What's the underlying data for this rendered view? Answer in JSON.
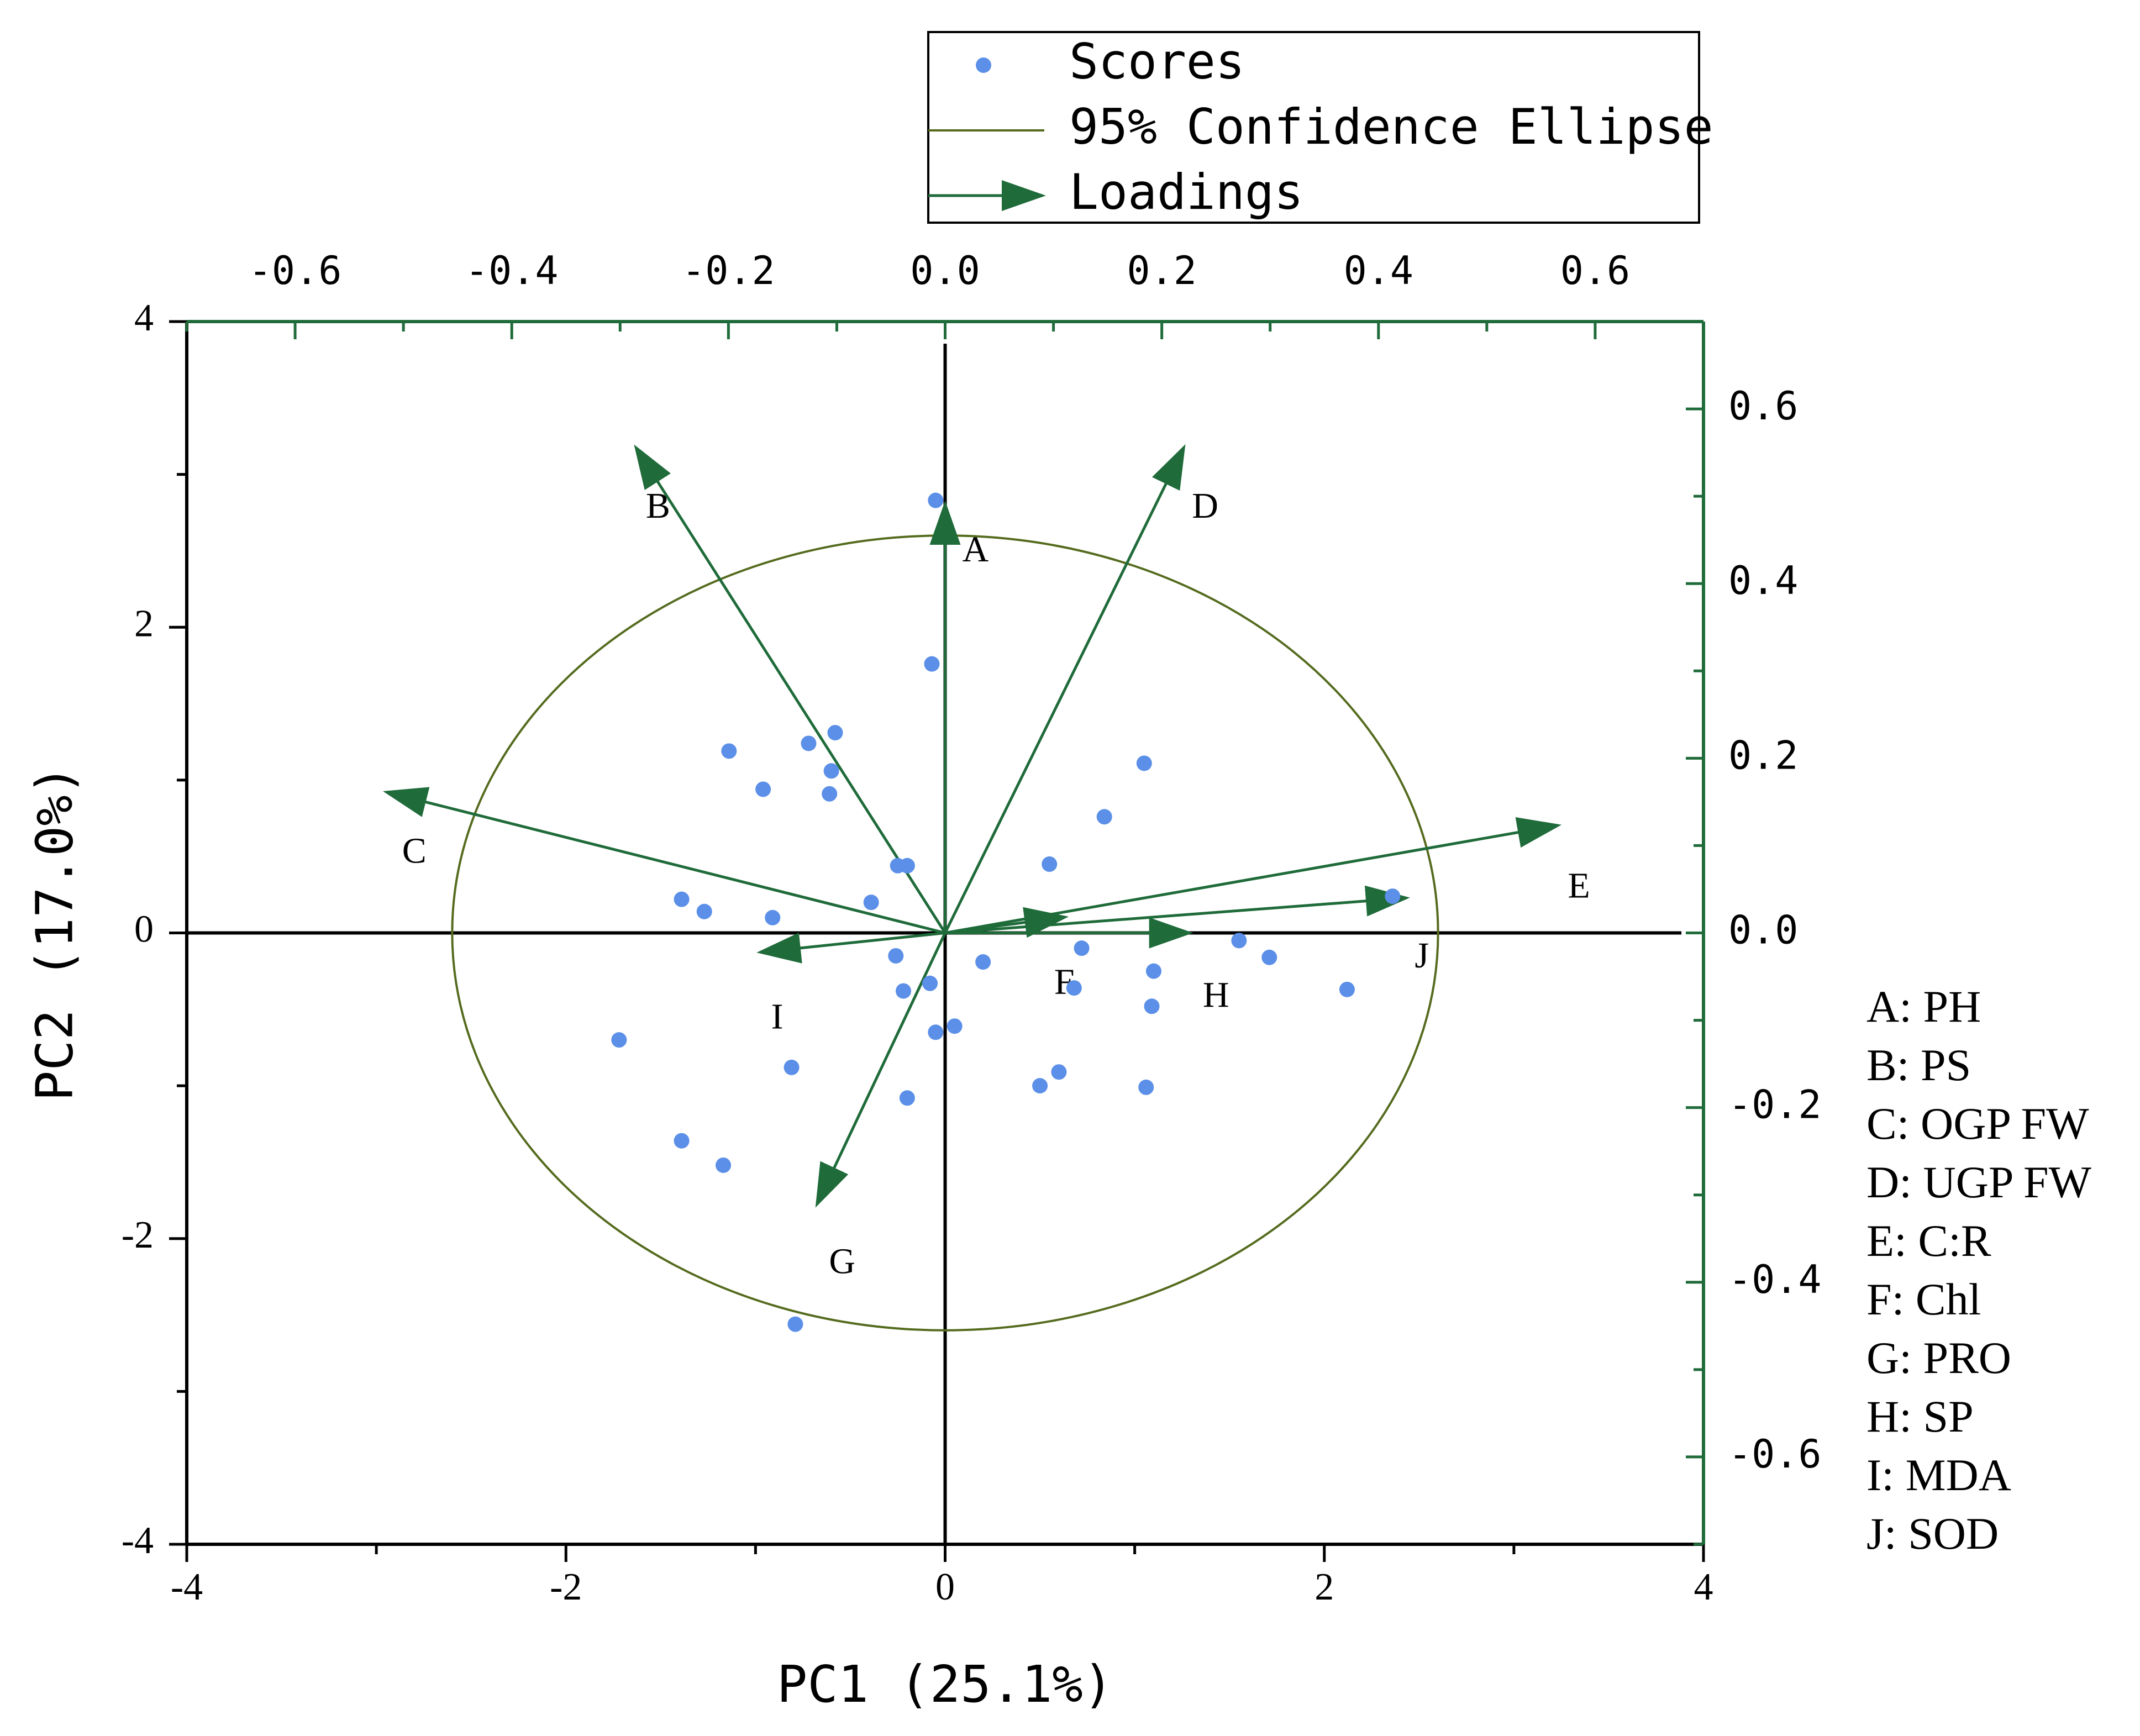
{
  "chart_data": {
    "type": "scatter",
    "subtype": "pca-biplot",
    "xlabel": "PC1 (25.1%)",
    "ylabel": "PC2 (17.0%)",
    "xlim": [
      -4,
      4
    ],
    "ylim": [
      -4,
      4
    ],
    "x_ticks": [
      "-4",
      "-2",
      "0",
      "2",
      "4"
    ],
    "x_tick_values": [
      -4,
      -2,
      0,
      2,
      4
    ],
    "y_ticks": [
      "4",
      "2",
      "0",
      "-2",
      "-4"
    ],
    "y_tick_values": [
      4,
      2,
      0,
      -2,
      -4
    ],
    "loadings_xlim": [
      -0.7,
      0.7
    ],
    "loadings_ylim": [
      -0.7,
      0.7
    ],
    "top_ticks": [
      "-0.6",
      "-0.4",
      "-0.2",
      "0.0",
      "0.2",
      "0.4",
      "0.6"
    ],
    "top_tick_values": [
      -0.6,
      -0.4,
      -0.2,
      0.0,
      0.2,
      0.4,
      0.6
    ],
    "right_ticks": [
      "0.6",
      "0.4",
      "0.2",
      "0.0",
      "-0.2",
      "-0.4",
      "-0.6"
    ],
    "right_tick_values": [
      0.6,
      0.4,
      0.2,
      0.0,
      -0.2,
      -0.4,
      -0.6
    ],
    "legend": {
      "position": "top",
      "entries": [
        {
          "label": "Scores",
          "kind": "point"
        },
        {
          "label": "95% Confidence Ellipse",
          "kind": "line"
        },
        {
          "label": "Loadings",
          "kind": "arrow"
        }
      ]
    },
    "ellipse": {
      "center": [
        0,
        0
      ],
      "rx": 2.6,
      "ry": 2.6
    },
    "scores": [
      {
        "x": -0.05,
        "y": 2.83
      },
      {
        "x": -0.07,
        "y": 1.76
      },
      {
        "x": -1.14,
        "y": 1.19
      },
      {
        "x": -0.72,
        "y": 1.24
      },
      {
        "x": -0.58,
        "y": 1.31
      },
      {
        "x": -0.6,
        "y": 1.06
      },
      {
        "x": -0.61,
        "y": 0.91
      },
      {
        "x": -0.96,
        "y": 0.94
      },
      {
        "x": 1.05,
        "y": 1.11
      },
      {
        "x": 0.84,
        "y": 0.76
      },
      {
        "x": 0.55,
        "y": 0.45
      },
      {
        "x": -0.25,
        "y": 0.44
      },
      {
        "x": -0.2,
        "y": 0.44
      },
      {
        "x": -1.39,
        "y": 0.22
      },
      {
        "x": -1.27,
        "y": 0.14
      },
      {
        "x": -0.91,
        "y": 0.1
      },
      {
        "x": -0.39,
        "y": 0.2
      },
      {
        "x": 2.36,
        "y": 0.24
      },
      {
        "x": -0.26,
        "y": -0.15
      },
      {
        "x": 0.72,
        "y": -0.1
      },
      {
        "x": 0.2,
        "y": -0.19
      },
      {
        "x": 1.55,
        "y": -0.05
      },
      {
        "x": 1.71,
        "y": -0.16
      },
      {
        "x": 1.1,
        "y": -0.25
      },
      {
        "x": -0.22,
        "y": -0.38
      },
      {
        "x": -0.08,
        "y": -0.33
      },
      {
        "x": 0.68,
        "y": -0.36
      },
      {
        "x": 1.09,
        "y": -0.48
      },
      {
        "x": 2.12,
        "y": -0.37
      },
      {
        "x": -0.05,
        "y": -0.65
      },
      {
        "x": 0.05,
        "y": -0.61
      },
      {
        "x": -1.72,
        "y": -0.7
      },
      {
        "x": -0.81,
        "y": -0.88
      },
      {
        "x": 0.5,
        "y": -1.0
      },
      {
        "x": 0.6,
        "y": -0.91
      },
      {
        "x": 1.06,
        "y": -1.01
      },
      {
        "x": -0.2,
        "y": -1.08
      },
      {
        "x": -1.39,
        "y": -1.36
      },
      {
        "x": -1.17,
        "y": -1.52
      },
      {
        "x": -0.79,
        "y": -2.56
      }
    ],
    "loadings": [
      {
        "id": "A",
        "x": 0.0,
        "y": 0.49,
        "label_x": 0.028,
        "label_y": 0.435
      },
      {
        "id": "B",
        "x": -0.285,
        "y": 0.555,
        "label_x": -0.265,
        "label_y": 0.485
      },
      {
        "id": "C",
        "x": -0.515,
        "y": 0.161,
        "label_x": -0.49,
        "label_y": 0.09
      },
      {
        "id": "D",
        "x": 0.22,
        "y": 0.555,
        "label_x": 0.24,
        "label_y": 0.485
      },
      {
        "id": "E",
        "x": 0.565,
        "y": 0.123,
        "label_x": 0.585,
        "label_y": 0.05
      },
      {
        "id": "F",
        "x": 0.11,
        "y": 0.018,
        "label_x": 0.11,
        "label_y": -0.06
      },
      {
        "id": "G",
        "x": -0.118,
        "y": -0.31,
        "label_x": -0.095,
        "label_y": -0.38
      },
      {
        "id": "H",
        "x": 0.225,
        "y": 0.0,
        "label_x": 0.25,
        "label_y": -0.075
      },
      {
        "id": "I",
        "x": -0.17,
        "y": -0.022,
        "label_x": -0.155,
        "label_y": -0.1
      },
      {
        "id": "J",
        "x": 0.425,
        "y": 0.04,
        "label_x": 0.44,
        "label_y": -0.03
      }
    ],
    "variable_key": [
      "A: PH",
      "B: PS",
      "C: OGP FW",
      "D: UGP FW",
      "E: C:R",
      "F: Chl",
      "G: PRO",
      "H: SP",
      "I: MDA",
      "J: SOD"
    ],
    "colors": {
      "scores": "#5b8fe8",
      "ellipse": "#556b1e",
      "loadings": "#1f6b3a",
      "axes": "#000000",
      "secondary_axes": "#1f6b3a"
    }
  }
}
